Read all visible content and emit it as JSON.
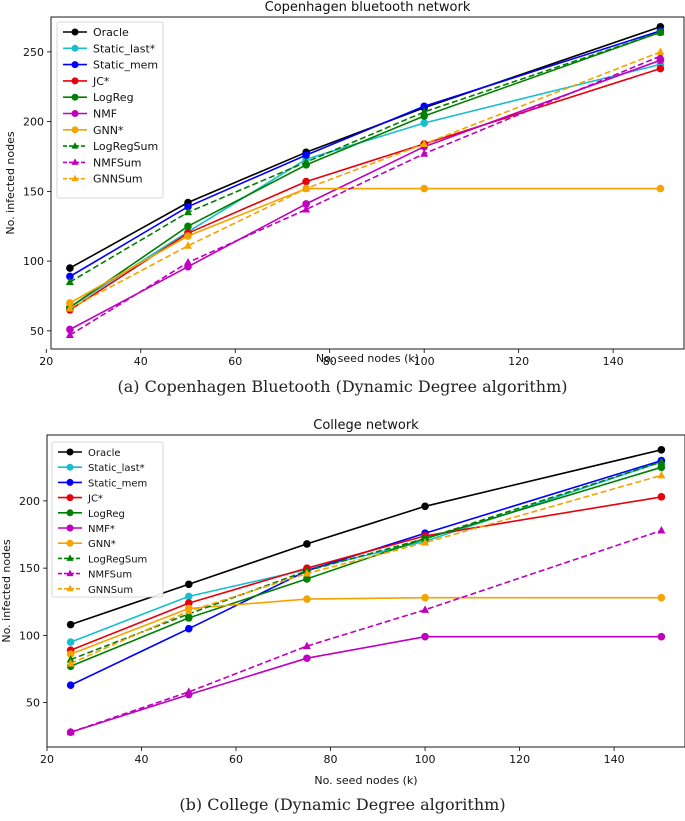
{
  "chart_data": [
    {
      "type": "line",
      "title": "Copenhagen bluetooth network",
      "xlabel": "No. seed nodes (k)",
      "ylabel": "No. infected nodes",
      "caption": "(a) Copenhagen Bluetooth (Dynamic Degree algorithm)",
      "xlim": [
        21,
        155
      ],
      "ylim": [
        37,
        275
      ],
      "xticks": [
        20,
        40,
        60,
        80,
        100,
        120,
        140
      ],
      "yticks": [
        50,
        100,
        150,
        200,
        250
      ],
      "x": [
        25,
        50,
        75,
        100,
        150
      ],
      "legend_position": "upper-left",
      "series": [
        {
          "name": "Oracle",
          "color": "#000000",
          "dash": false,
          "marker": "circle",
          "values": [
            95,
            142,
            178,
            210,
            268
          ]
        },
        {
          "name": "Static_last*",
          "color": "#17becf",
          "dash": false,
          "marker": "circle",
          "values": [
            67,
            121,
            173,
            199,
            241
          ]
        },
        {
          "name": "Static_mem",
          "color": "#0000ff",
          "dash": false,
          "marker": "circle",
          "values": [
            89,
            139,
            176,
            211,
            265
          ]
        },
        {
          "name": "JC*",
          "color": "#e8000b",
          "dash": false,
          "marker": "circle",
          "values": [
            65,
            120,
            157,
            184,
            238
          ]
        },
        {
          "name": "LogReg",
          "color": "#008000",
          "dash": false,
          "marker": "circle",
          "values": [
            67,
            125,
            169,
            204,
            264
          ]
        },
        {
          "name": "NMF",
          "color": "#bf00bf",
          "dash": false,
          "marker": "circle",
          "values": [
            51,
            96,
            141,
            182,
            244
          ]
        },
        {
          "name": "GNN*",
          "color": "#f5a300",
          "dash": false,
          "marker": "circle",
          "values": [
            70,
            118,
            152,
            152,
            152
          ]
        },
        {
          "name": "LogRegSum",
          "color": "#008000",
          "dash": true,
          "marker": "triangle",
          "values": [
            85,
            135,
            171,
            207,
            264
          ]
        },
        {
          "name": "NMFSum",
          "color": "#bf00bf",
          "dash": true,
          "marker": "triangle",
          "values": [
            47,
            99,
            137,
            177,
            247
          ]
        },
        {
          "name": "GNNSum",
          "color": "#f5a300",
          "dash": true,
          "marker": "triangle",
          "values": [
            66,
            111,
            152,
            184,
            250
          ]
        }
      ]
    },
    {
      "type": "line",
      "title": "College network",
      "xlabel": "No. seed nodes (k)",
      "ylabel": "No. infected nodes",
      "caption": "(b) College (Dynamic Degree algorithm)",
      "xlim": [
        20,
        155
      ],
      "ylim": [
        17,
        249
      ],
      "xticks": [
        20,
        40,
        60,
        80,
        100,
        120,
        140
      ],
      "yticks": [
        50,
        100,
        150,
        200
      ],
      "x": [
        25,
        50,
        75,
        100,
        150
      ],
      "legend_position": "upper-left",
      "series": [
        {
          "name": "Oracle",
          "color": "#000000",
          "dash": false,
          "marker": "circle",
          "values": [
            108,
            138,
            168,
            196,
            238
          ]
        },
        {
          "name": "Static_last*",
          "color": "#17becf",
          "dash": false,
          "marker": "circle",
          "values": [
            95,
            129,
            149,
            170,
            229
          ]
        },
        {
          "name": "Static_mem",
          "color": "#0000ff",
          "dash": false,
          "marker": "circle",
          "values": [
            63,
            105,
            148,
            176,
            230
          ]
        },
        {
          "name": "JC*",
          "color": "#e8000b",
          "dash": false,
          "marker": "circle",
          "values": [
            89,
            124,
            150,
            174,
            203
          ]
        },
        {
          "name": "LogReg",
          "color": "#008000",
          "dash": false,
          "marker": "circle",
          "values": [
            77,
            113,
            142,
            172,
            225
          ]
        },
        {
          "name": "NMF*",
          "color": "#bf00bf",
          "dash": false,
          "marker": "circle",
          "values": [
            28,
            56,
            83,
            99,
            99
          ]
        },
        {
          "name": "GNN*",
          "color": "#f5a300",
          "dash": false,
          "marker": "circle",
          "values": [
            86,
            120,
            127,
            128,
            128
          ]
        },
        {
          "name": "LogRegSum",
          "color": "#008000",
          "dash": true,
          "marker": "triangle",
          "values": [
            82,
            116,
            148,
            172,
            229
          ]
        },
        {
          "name": "NMFSum",
          "color": "#bf00bf",
          "dash": true,
          "marker": "triangle",
          "values": [
            28,
            58,
            92,
            119,
            178
          ]
        },
        {
          "name": "GNNSum",
          "color": "#f5a300",
          "dash": true,
          "marker": "triangle",
          "values": [
            79,
            118,
            146,
            169,
            219
          ]
        }
      ]
    }
  ]
}
